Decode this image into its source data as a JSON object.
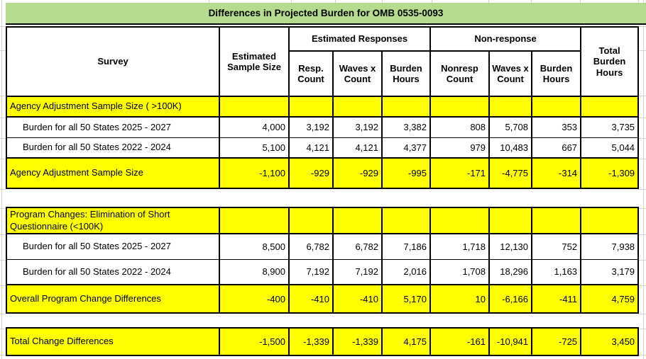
{
  "title": "Differences in Projected Burden for OMB 0535-0093",
  "colors": {
    "title_bg": "#b5dc8e",
    "highlight_yellow": "#ffff00",
    "border": "#000000",
    "gridline": "#d6d6d6",
    "text": "#000000"
  },
  "header": {
    "survey": "Survey",
    "sample_size": "Estimated Sample Size",
    "groups": [
      {
        "label": "Estimated Responses",
        "columns": [
          "Resp. Count",
          "Waves x Count",
          "Burden Hours"
        ]
      },
      {
        "label": "Non-response",
        "columns": [
          "Nonresp Count",
          "Waves x Count",
          "Burden Hours"
        ]
      }
    ],
    "total": "Total Burden Hours"
  },
  "rows": [
    {
      "type": "section",
      "label": "Agency Adjustment Sample Size ( >100K)",
      "values": [
        "",
        "",
        "",
        "",
        "",
        "",
        "",
        ""
      ]
    },
    {
      "type": "data",
      "label": "Burden for all 50 States 2025 - 2027",
      "values": [
        "4,000",
        "3,192",
        "3,192",
        "3,382",
        "808",
        "5,708",
        "353",
        "3,735"
      ]
    },
    {
      "type": "data",
      "label": "Burden for all 50 States 2022 - 2024",
      "values": [
        "5,100",
        "4,121",
        "4,121",
        "4,377",
        "979",
        "10,483",
        "667",
        "5,044"
      ]
    },
    {
      "type": "total",
      "label": "Agency Adjustment Sample Size",
      "values": [
        "-1,100",
        "-929",
        "-929",
        "-995",
        "-171",
        "-4,775",
        "-314",
        "-1,309"
      ]
    },
    {
      "type": "spacer",
      "label": "",
      "values": []
    },
    {
      "type": "section",
      "label": "Program Changes: Elimination of Short Questionnaire (<100K)",
      "values": [
        "",
        "",
        "",
        "",
        "",
        "",
        "",
        ""
      ]
    },
    {
      "type": "data",
      "label": "Burden for all 50 States 2025 - 2027",
      "values": [
        "8,500",
        "6,782",
        "6,782",
        "7,186",
        "1,718",
        "12,130",
        "752",
        "7,938"
      ]
    },
    {
      "type": "data",
      "label": "Burden for all 50 States 2022 - 2024",
      "values": [
        "8,900",
        "7,192",
        "7,192",
        "2,016",
        "1,708",
        "18,296",
        "1,163",
        "3,179"
      ]
    },
    {
      "type": "total",
      "label": "Overall Program Change Differences",
      "values": [
        "-400",
        "-410",
        "-410",
        "5,170",
        "10",
        "-6,166",
        "-411",
        "4,759"
      ]
    },
    {
      "type": "spacer",
      "label": "",
      "values": []
    },
    {
      "type": "total",
      "label": "Total Change Differences",
      "values": [
        "-1,500",
        "-1,339",
        "-1,339",
        "4,175",
        "-161",
        "-10,941",
        "-725",
        "3,450"
      ]
    }
  ]
}
